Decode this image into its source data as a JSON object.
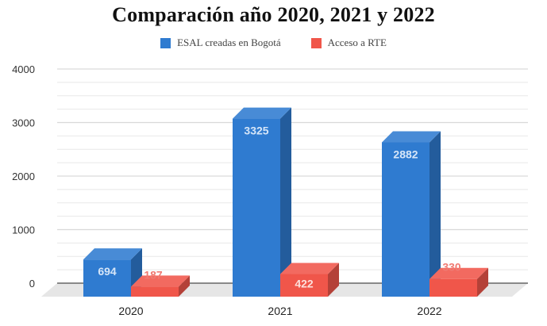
{
  "chart_data": {
    "type": "bar",
    "title": "Comparación año 2020, 2021 y 2022",
    "xlabel": "",
    "ylabel": "",
    "categories": [
      "2020",
      "2021",
      "2022"
    ],
    "series": [
      {
        "name": "ESAL creadas en Bogotá",
        "values": [
          694,
          3325,
          2882
        ],
        "color": "#2f7bd0",
        "labels": [
          "694",
          "3325",
          "2882"
        ]
      },
      {
        "name": "Acceso a RTE",
        "values": [
          187,
          422,
          330
        ],
        "color": "#f0564a",
        "labels": [
          "187",
          "422",
          "330"
        ]
      }
    ],
    "ylim": [
      0,
      4000
    ],
    "yticks": [
      0,
      1000,
      2000,
      3000,
      4000
    ],
    "ytick_labels": [
      "0",
      "1000",
      "2000",
      "3000",
      "4000"
    ],
    "minor_gridlines_per_major": 3,
    "grid": true,
    "legend_position": "top-center",
    "style": "3d"
  }
}
